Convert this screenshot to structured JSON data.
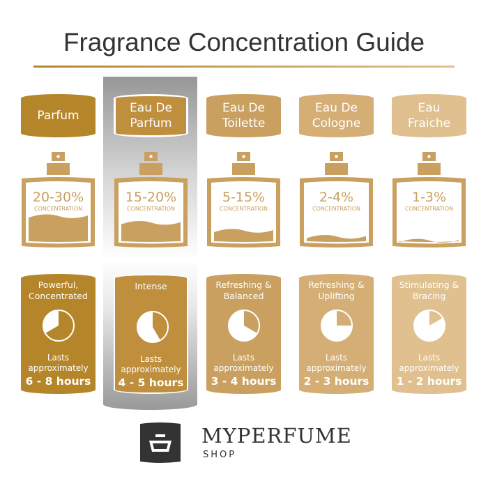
{
  "title": "Fragrance Concentration Guide",
  "columns": [
    {
      "name": "Parfum",
      "concentration": "20-30%",
      "concentration_label": "CONCENTRATION",
      "description": "Powerful,\nConcentrated",
      "lasts_label": "Lasts\napproximately",
      "hours": "6 - 8 hours",
      "color": "#b5852a",
      "fill_level": 0.42,
      "pie_fraction": 0.667,
      "highlighted": false
    },
    {
      "name": "Eau De\nParfum",
      "concentration": "15-20%",
      "concentration_label": "CONCENTRATION",
      "description": "Intense",
      "lasts_label": "Lasts\napproximately",
      "hours": "4 - 5 hours",
      "color": "#bf8f3e",
      "fill_level": 0.32,
      "pie_fraction": 0.417,
      "highlighted": true
    },
    {
      "name": "Eau De\nToilette",
      "concentration": "5-15%",
      "concentration_label": "CONCENTRATION",
      "description": "Refreshing &\nBalanced",
      "lasts_label": "Lasts\napproximately",
      "hours": "3 - 4 hours",
      "color": "#c9a060",
      "fill_level": 0.2,
      "pie_fraction": 0.333,
      "highlighted": false
    },
    {
      "name": "Eau De\nCologne",
      "concentration": "2-4%",
      "concentration_label": "CONCENTRATION",
      "description": "Refreshing &\nUplifting",
      "lasts_label": "Lasts\napproximately",
      "hours": "2 - 3 hours",
      "color": "#d4ae74",
      "fill_level": 0.11,
      "pie_fraction": 0.25,
      "highlighted": false
    },
    {
      "name": "Eau\nFraiche",
      "concentration": "1-3%",
      "concentration_label": "CONCENTRATION",
      "description": "Stimulating &\nBracing",
      "lasts_label": "Lasts\napproximately",
      "hours": "1 - 2 hours",
      "color": "#dfc08e",
      "fill_level": 0.05,
      "pie_fraction": 0.167,
      "highlighted": false
    }
  ],
  "bottle_color": "#c9a060",
  "logo": {
    "brand": "MYPERFUME",
    "sub": "SHOP",
    "color": "#333333"
  }
}
